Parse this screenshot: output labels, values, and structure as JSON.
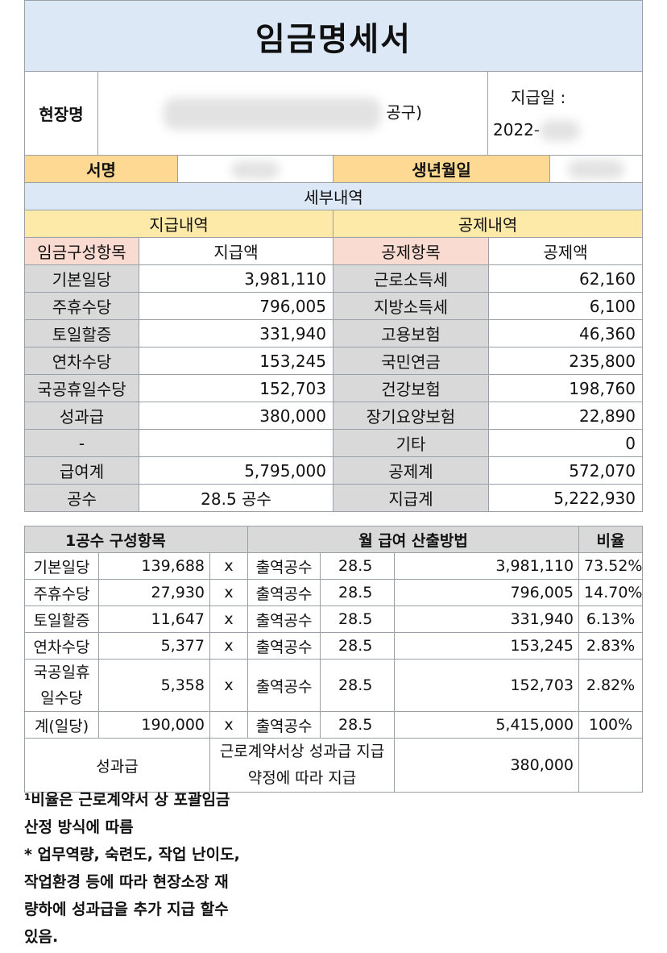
{
  "title": "임금명세서",
  "site": {
    "label": "현장명",
    "name_visible": "공구)",
    "pay_date_label": "지급일 :",
    "pay_date_value": "2022-"
  },
  "sign": {
    "label": "서명",
    "birth_label": "생년월일"
  },
  "details_header": "세부내역",
  "payment_header": "지급내역",
  "deduction_header": "공제내역",
  "col_headers": {
    "pay_item": "임금구성항목",
    "pay_amount": "지급액",
    "ded_item": "공제항목",
    "ded_amount": "공제액"
  },
  "rows": [
    {
      "pay_item": "기본일당",
      "pay_amount": "3,981,110",
      "ded_item": "근로소득세",
      "ded_amount": "62,160"
    },
    {
      "pay_item": "주휴수당",
      "pay_amount": "796,005",
      "ded_item": "지방소득세",
      "ded_amount": "6,100"
    },
    {
      "pay_item": "토일할증",
      "pay_amount": "331,940",
      "ded_item": "고용보험",
      "ded_amount": "46,360"
    },
    {
      "pay_item": "연차수당",
      "pay_amount": "153,245",
      "ded_item": "국민연금",
      "ded_amount": "235,800"
    },
    {
      "pay_item": "국공휴일수당",
      "pay_amount": "152,703",
      "ded_item": "건강보험",
      "ded_amount": "198,760"
    },
    {
      "pay_item": "성과급",
      "pay_amount": "380,000",
      "ded_item": "장기요양보험",
      "ded_amount": "22,890"
    },
    {
      "pay_item": "-",
      "pay_amount": "",
      "ded_item": "기타",
      "ded_amount": "0"
    },
    {
      "pay_item": "급여계",
      "pay_amount": "5,795,000",
      "ded_item": "공제계",
      "ded_amount": "572,070"
    },
    {
      "pay_item": "공수",
      "pay_amount": "28.5 공수",
      "ded_item": "지급계",
      "ded_amount": "5,222,930"
    }
  ],
  "calc": {
    "head_items": "1공수 구성항목",
    "head_method": "월 급여 산출방법",
    "head_ratio": "비율",
    "rows": [
      {
        "item": "기본일당",
        "unit": "139,688",
        "x": "x",
        "label": "출역공수",
        "days": "28.5",
        "total": "3,981,110",
        "ratio": "73.52%"
      },
      {
        "item": "주휴수당",
        "unit": "27,930",
        "x": "x",
        "label": "출역공수",
        "days": "28.5",
        "total": "796,005",
        "ratio": "14.70%"
      },
      {
        "item": "토일할증",
        "unit": "11,647",
        "x": "x",
        "label": "출역공수",
        "days": "28.5",
        "total": "331,940",
        "ratio": "6.13%"
      },
      {
        "item": "연차수당",
        "unit": "5,377",
        "x": "x",
        "label": "출역공수",
        "days": "28.5",
        "total": "153,245",
        "ratio": "2.83%"
      },
      {
        "item_line1": "국공일휴",
        "item_line2": "일수당",
        "unit": "5,358",
        "x": "x",
        "label": "출역공수",
        "days": "28.5",
        "total": "152,703",
        "ratio": "2.82%"
      },
      {
        "item": "계(일당)",
        "unit": "190,000",
        "x": "x",
        "label": "출역공수",
        "days": "28.5",
        "total": "5,415,000",
        "ratio": "100%"
      }
    ],
    "bonus": {
      "label": "성과급",
      "desc_line1": "근로계약서상 성과급 지급",
      "desc_line2": "약정에 따라 지급",
      "amount": "380,000"
    }
  },
  "notes": [
    "¹비율은 근로계약서 상 포괄임금",
    "산정 방식에 따름",
    "* 업무역량, 숙련도, 작업 난이도,",
    "작업환경 등에 따라 현장소장 재",
    "량하에 성과급을 추가 지급 할수",
    "있음."
  ]
}
